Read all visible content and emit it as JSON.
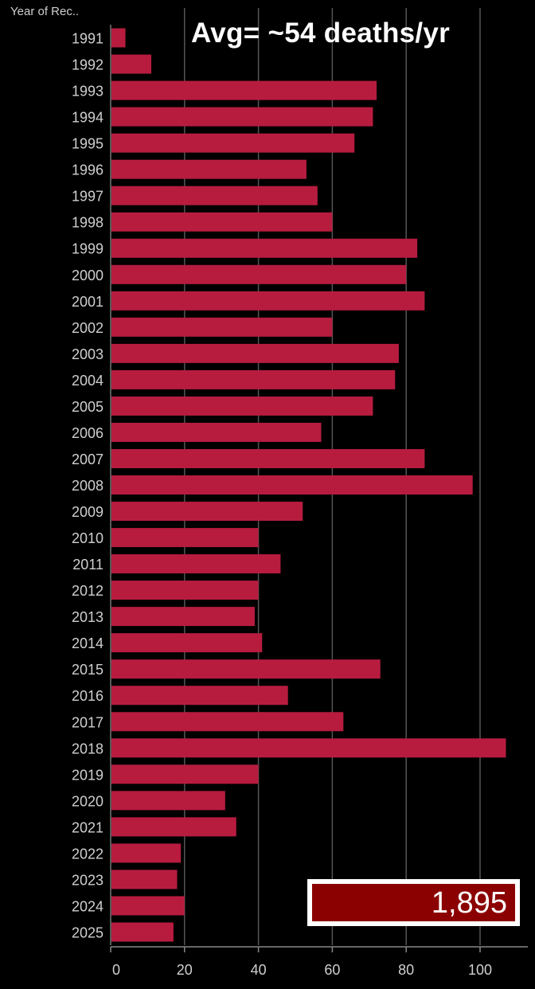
{
  "header": {
    "dimension_label": "Year of Rec..",
    "headline": "Avg= ~54 deaths/yr"
  },
  "total_badge": {
    "value": "1,895"
  },
  "colors": {
    "background": "#000000",
    "bar": "#b71c3f",
    "grid": "#555555",
    "text": "#cfcfcf",
    "badge": "#8b0000"
  },
  "chart_data": {
    "type": "bar",
    "orientation": "horizontal",
    "categories": [
      "1991",
      "1992",
      "1993",
      "1994",
      "1995",
      "1996",
      "1997",
      "1998",
      "1999",
      "2000",
      "2001",
      "2002",
      "2003",
      "2004",
      "2005",
      "2006",
      "2007",
      "2008",
      "2009",
      "2010",
      "2011",
      "2012",
      "2013",
      "2014",
      "2015",
      "2016",
      "2017",
      "2018",
      "2019",
      "2020",
      "2021",
      "2022",
      "2023",
      "2024",
      "2025"
    ],
    "values": [
      4,
      11,
      72,
      71,
      66,
      53,
      56,
      60,
      83,
      80,
      85,
      60,
      78,
      77,
      71,
      57,
      85,
      98,
      52,
      40,
      46,
      40,
      39,
      41,
      73,
      48,
      63,
      107,
      40,
      31,
      34,
      19,
      18,
      20,
      17
    ],
    "x_ticks": [
      "0",
      "20",
      "40",
      "60",
      "80",
      "100"
    ],
    "xlim": [
      0,
      110
    ],
    "grid": true
  }
}
